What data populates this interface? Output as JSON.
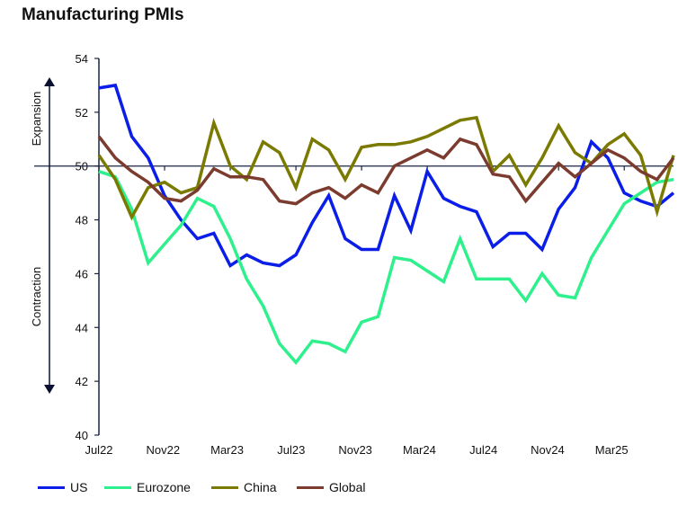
{
  "title": "Manufacturing PMIs",
  "chart_data": {
    "type": "line",
    "title": "Manufacturing PMIs",
    "xlabel": "",
    "ylabel": "",
    "ylim": [
      40,
      54
    ],
    "yticks": [
      40,
      42,
      44,
      46,
      48,
      50,
      52,
      54
    ],
    "x": [
      "Jul22",
      "Aug22",
      "Sep22",
      "Oct22",
      "Nov22",
      "Dec22",
      "Jan23",
      "Feb23",
      "Mar23",
      "Apr23",
      "May23",
      "Jun23",
      "Jul23",
      "Aug23",
      "Sep23",
      "Oct23",
      "Nov23",
      "Dec23",
      "Jan24",
      "Feb24",
      "Mar24",
      "Apr24",
      "May24",
      "Jun24",
      "Jul24",
      "Aug24",
      "Sep24",
      "Oct24",
      "Nov24",
      "Dec24",
      "Jan25",
      "Feb25",
      "Mar25",
      "Apr25",
      "May25",
      "Jun25"
    ],
    "xticks": [
      "Jul22",
      "Nov22",
      "Mar23",
      "Jul23",
      "Nov23",
      "Mar24",
      "Jul24",
      "Nov24",
      "Mar25"
    ],
    "reference_line": 50,
    "annotations": {
      "upper": "Expansion",
      "lower": "Contraction"
    },
    "legend_position": "bottom",
    "series": [
      {
        "name": "US",
        "color": "#0b1ee8",
        "values": [
          52.9,
          53.0,
          51.1,
          50.3,
          48.9,
          48.0,
          47.3,
          47.5,
          46.3,
          46.7,
          46.4,
          46.3,
          46.7,
          47.9,
          48.9,
          47.3,
          46.9,
          46.9,
          48.9,
          47.6,
          49.8,
          48.8,
          48.5,
          48.3,
          47.0,
          47.5,
          47.5,
          46.9,
          48.4,
          49.2,
          50.9,
          50.3,
          49.0,
          48.7,
          48.5,
          49.0
        ]
      },
      {
        "name": "Eurozone",
        "color": "#2ef08c",
        "values": [
          49.8,
          49.6,
          48.4,
          46.4,
          47.1,
          47.8,
          48.8,
          48.5,
          47.3,
          45.8,
          44.8,
          43.4,
          42.7,
          43.5,
          43.4,
          43.1,
          44.2,
          44.4,
          46.6,
          46.5,
          46.1,
          45.7,
          47.3,
          45.8,
          45.8,
          45.8,
          45.0,
          46.0,
          45.2,
          45.1,
          46.6,
          47.6,
          48.6,
          49.0,
          49.4,
          49.5
        ]
      },
      {
        "name": "China",
        "color": "#7a7a00",
        "values": [
          50.4,
          49.5,
          48.1,
          49.2,
          49.4,
          49.0,
          49.2,
          51.6,
          50.0,
          49.5,
          50.9,
          50.5,
          49.2,
          51.0,
          50.6,
          49.5,
          50.7,
          50.8,
          50.8,
          50.9,
          51.1,
          51.4,
          51.7,
          51.8,
          49.8,
          50.4,
          49.3,
          50.3,
          51.5,
          50.5,
          50.1,
          50.8,
          51.2,
          50.4,
          48.3,
          50.4
        ]
      },
      {
        "name": "Global",
        "color": "#7b3b2e",
        "values": [
          51.1,
          50.3,
          49.8,
          49.4,
          48.8,
          48.7,
          49.1,
          49.9,
          49.6,
          49.6,
          49.5,
          48.7,
          48.6,
          49.0,
          49.2,
          48.8,
          49.3,
          49.0,
          50.0,
          50.3,
          50.6,
          50.3,
          51.0,
          50.8,
          49.7,
          49.6,
          48.7,
          49.4,
          50.1,
          49.6,
          50.1,
          50.6,
          50.3,
          49.8,
          49.5,
          50.3
        ]
      }
    ]
  }
}
